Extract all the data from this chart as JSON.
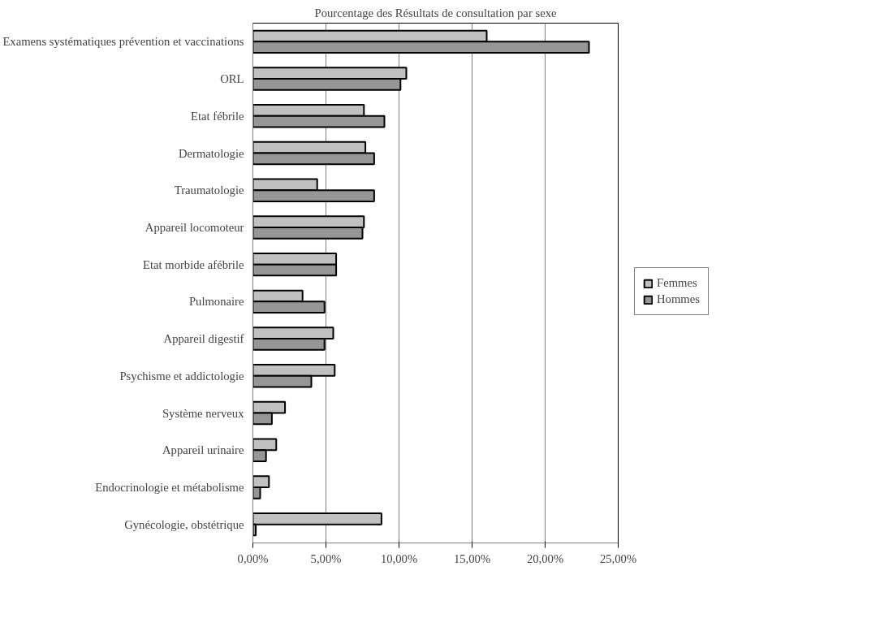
{
  "chart_data": {
    "type": "bar",
    "orientation": "horizontal",
    "title": "Pourcentage des Résultats de consultation par sexe",
    "categories": [
      "Examens systématiques prévention et vaccinations",
      "ORL",
      "Etat fébrile",
      "Dermatologie",
      "Traumatologie",
      "Appareil locomoteur",
      "Etat morbide afébrile",
      "Pulmonaire",
      "Appareil digestif",
      "Psychisme et addictologie",
      "Système nerveux",
      "Appareil urinaire",
      "Endocrinologie et métabolisme",
      "Gynécologie, obstétrique"
    ],
    "series": [
      {
        "name": "Femmes",
        "color": "#c0c0c0",
        "values": [
          16.0,
          10.5,
          7.6,
          7.7,
          4.4,
          7.6,
          5.7,
          3.4,
          5.5,
          5.6,
          2.2,
          1.6,
          1.1,
          8.8
        ]
      },
      {
        "name": "Hommes",
        "color": "#969696",
        "values": [
          23.0,
          10.1,
          9.0,
          8.3,
          8.3,
          7.5,
          5.7,
          4.9,
          4.9,
          4.0,
          1.3,
          0.9,
          0.5,
          0.2
        ]
      }
    ],
    "xlim": [
      0,
      25
    ],
    "xticks": [
      {
        "value": 0,
        "label": "0,00%"
      },
      {
        "value": 5,
        "label": "5,00%"
      },
      {
        "value": 10,
        "label": "10,00%"
      },
      {
        "value": 15,
        "label": "15,00%"
      },
      {
        "value": 20,
        "label": "20,00%"
      },
      {
        "value": 25,
        "label": "25,00%"
      }
    ],
    "grid": "x",
    "legend": "right"
  }
}
